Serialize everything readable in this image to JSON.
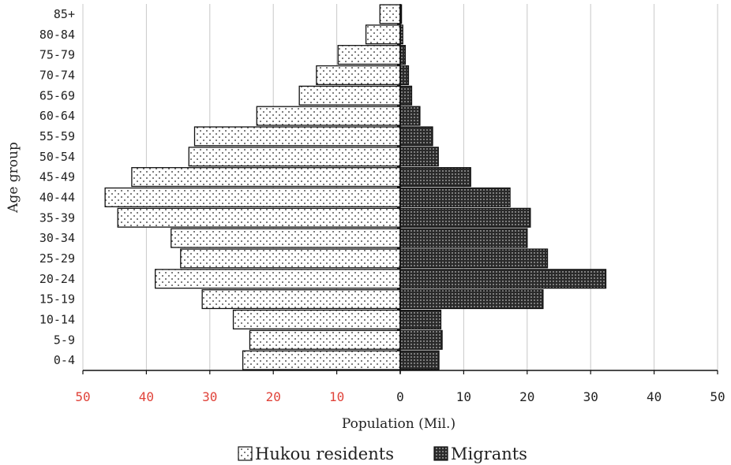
{
  "chart_data": {
    "type": "bar",
    "orientation": "horizontal-population-pyramid",
    "categories": [
      "0-4",
      "5-9",
      "10-14",
      "15-19",
      "20-24",
      "25-29",
      "30-34",
      "35-39",
      "40-44",
      "45-49",
      "50-54",
      "55-59",
      "60-64",
      "65-69",
      "70-74",
      "75-79",
      "80-84",
      "85+"
    ],
    "series": [
      {
        "name": "Hukou residents",
        "side": "left",
        "pattern": "sparse-dots",
        "values": [
          24.8,
          23.7,
          26.3,
          31.2,
          38.6,
          34.6,
          36.1,
          44.5,
          46.5,
          42.3,
          33.3,
          32.4,
          22.6,
          15.9,
          13.2,
          9.8,
          5.4,
          3.2
        ]
      },
      {
        "name": "Migrants",
        "side": "right",
        "pattern": "dense-dots",
        "values": [
          6.1,
          6.6,
          6.4,
          22.5,
          32.4,
          23.2,
          20.0,
          20.5,
          17.3,
          11.1,
          6.0,
          5.1,
          3.1,
          1.8,
          1.3,
          0.8,
          0.4,
          0.2
        ]
      }
    ],
    "xlabel": "Population (Mil.)",
    "ylabel": "Age group",
    "xlim": [
      -50,
      50
    ],
    "x_ticks": [
      -50,
      -40,
      -30,
      -20,
      -10,
      0,
      10,
      20,
      30,
      40,
      50
    ],
    "x_tick_labels": [
      "50",
      "40",
      "30",
      "20",
      "10",
      "0",
      "10",
      "20",
      "30",
      "40",
      "50"
    ],
    "grid": "vertical",
    "legend_position": "bottom-center",
    "colors": {
      "left_tick_labels": "#e0433a",
      "right_tick_labels": "#222222",
      "bar_outline": "#111111",
      "hukou_fill": "#ffffff",
      "migrants_fill": "#2a2a2a",
      "grid": "#c8c8c8"
    }
  },
  "legend": [
    {
      "label": "Hukou residents",
      "icon": "sparse-dotted-square"
    },
    {
      "label": "Migrants",
      "icon": "dense-dotted-square"
    }
  ]
}
